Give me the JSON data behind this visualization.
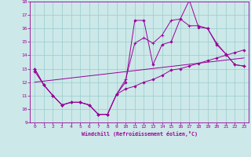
{
  "xlabel": "Windchill (Refroidissement éolien,°C)",
  "background_color": "#cce8e8",
  "grid_color": "#99cccc",
  "line_color": "#990099",
  "xlim": [
    -0.5,
    23.5
  ],
  "ylim": [
    9,
    18
  ],
  "xticks": [
    0,
    1,
    2,
    3,
    4,
    5,
    6,
    7,
    8,
    9,
    10,
    11,
    12,
    13,
    14,
    15,
    16,
    17,
    18,
    19,
    20,
    21,
    22,
    23
  ],
  "yticks": [
    9,
    10,
    11,
    12,
    13,
    14,
    15,
    16,
    17,
    18
  ],
  "line1_x": [
    0,
    1,
    2,
    3,
    4,
    5,
    6,
    7,
    8,
    9,
    10,
    11,
    12,
    13,
    14,
    15,
    16,
    17,
    18,
    19,
    20,
    21,
    22,
    23
  ],
  "line1_y": [
    13.0,
    11.8,
    11.0,
    10.3,
    10.5,
    10.5,
    10.3,
    9.6,
    9.6,
    11.1,
    12.0,
    16.6,
    16.6,
    13.3,
    14.8,
    15.0,
    16.7,
    18.1,
    16.1,
    16.0,
    14.8,
    14.1,
    13.3,
    13.2
  ],
  "line2_x": [
    0,
    1,
    2,
    3,
    4,
    5,
    6,
    7,
    8,
    9,
    10,
    11,
    12,
    13,
    14,
    15,
    16,
    17,
    18,
    19,
    20,
    21,
    22,
    23
  ],
  "line2_y": [
    13.0,
    11.8,
    11.0,
    10.3,
    10.5,
    10.5,
    10.3,
    9.6,
    9.6,
    11.1,
    12.2,
    14.9,
    15.3,
    14.9,
    15.5,
    16.6,
    16.7,
    16.2,
    16.2,
    16.0,
    14.9,
    14.1,
    13.3,
    13.2
  ],
  "line3_x": [
    0,
    1,
    2,
    3,
    4,
    5,
    6,
    7,
    8,
    9,
    10,
    11,
    12,
    13,
    14,
    15,
    16,
    17,
    18,
    19,
    20,
    21,
    22,
    23
  ],
  "line3_y": [
    12.8,
    11.8,
    11.0,
    10.3,
    10.5,
    10.5,
    10.3,
    9.6,
    9.6,
    11.1,
    11.5,
    11.7,
    12.0,
    12.2,
    12.5,
    12.9,
    13.0,
    13.2,
    13.4,
    13.6,
    13.8,
    14.0,
    14.2,
    14.4
  ],
  "line4_x": [
    0,
    23
  ],
  "line4_y": [
    12.0,
    13.8
  ]
}
